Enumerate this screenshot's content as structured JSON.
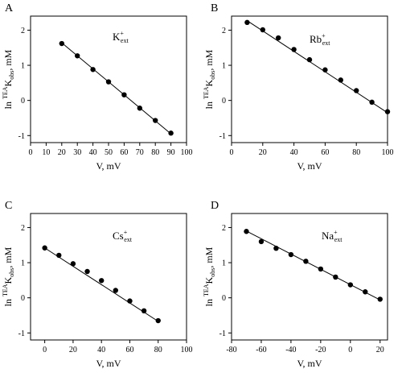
{
  "chart_data": [
    {
      "type": "scatter",
      "panel": "A",
      "ion": {
        "symbol": "K",
        "charge": "+",
        "sub": "ext"
      },
      "ylabel": {
        "prefix": "ln ",
        "sup": "TEA",
        "main": "K",
        "sub": "obs",
        "unit": ", mM"
      },
      "xlabel": "V, mV",
      "xlim": [
        0,
        100
      ],
      "ylim": [
        -1.2,
        2.4
      ],
      "xticks": [
        0,
        10,
        20,
        30,
        40,
        50,
        60,
        70,
        80,
        90,
        100
      ],
      "yticks": [
        -1,
        0,
        1,
        2
      ],
      "x": [
        20,
        30,
        40,
        50,
        60,
        70,
        80,
        90
      ],
      "y": [
        1.62,
        1.27,
        0.88,
        0.53,
        0.16,
        -0.22,
        -0.57,
        -0.93
      ],
      "fit": [
        [
          20,
          1.64
        ],
        [
          90,
          -0.95
        ]
      ]
    },
    {
      "type": "scatter",
      "panel": "B",
      "ion": {
        "symbol": "Rb",
        "charge": "+",
        "sub": "ext"
      },
      "ylabel": {
        "prefix": "ln ",
        "sup": "TEA",
        "main": "K",
        "sub": "obs",
        "unit": ", mM"
      },
      "xlabel": "V, mV",
      "xlim": [
        0,
        100
      ],
      "ylim": [
        -1.2,
        2.4
      ],
      "xticks": [
        0,
        20,
        40,
        60,
        80,
        100
      ],
      "yticks": [
        -1,
        0,
        1,
        2
      ],
      "x": [
        10,
        20,
        30,
        40,
        50,
        60,
        70,
        80,
        90,
        100
      ],
      "y": [
        2.22,
        2.01,
        1.78,
        1.45,
        1.16,
        0.87,
        0.58,
        0.28,
        -0.05,
        -0.32
      ],
      "fit": [
        [
          10,
          2.27
        ],
        [
          100,
          -0.35
        ]
      ]
    },
    {
      "type": "scatter",
      "panel": "C",
      "ion": {
        "symbol": "Cs",
        "charge": "+",
        "sub": "ext"
      },
      "ylabel": {
        "prefix": "ln ",
        "sup": "TEA",
        "main": "K",
        "sub": "obs",
        "unit": ", mM"
      },
      "xlabel": "V, mV",
      "xlim": [
        -10,
        100
      ],
      "ylim": [
        -1.2,
        2.4
      ],
      "xticks": [
        0,
        20,
        40,
        60,
        80,
        100
      ],
      "yticks": [
        -1,
        0,
        1,
        2
      ],
      "x": [
        0,
        10,
        20,
        30,
        40,
        50,
        60,
        70,
        80
      ],
      "y": [
        1.42,
        1.21,
        0.97,
        0.75,
        0.49,
        0.21,
        -0.09,
        -0.37,
        -0.65
      ],
      "fit": [
        [
          0,
          1.42
        ],
        [
          80,
          -0.67
        ]
      ]
    },
    {
      "type": "scatter",
      "panel": "D",
      "ion": {
        "symbol": "Na",
        "charge": "+",
        "sub": "ext"
      },
      "ylabel": {
        "prefix": "ln ",
        "sup": "TEA",
        "main": "K",
        "sub": "obs",
        "unit": ", mM"
      },
      "xlabel": "V, mV",
      "xlim": [
        -80,
        25
      ],
      "ylim": [
        -1.2,
        2.4
      ],
      "xticks": [
        -80,
        -60,
        -40,
        -20,
        0,
        20
      ],
      "yticks": [
        -1,
        0,
        1,
        2
      ],
      "x": [
        -70,
        -60,
        -50,
        -40,
        -30,
        -20,
        -10,
        0,
        10,
        20
      ],
      "y": [
        1.89,
        1.6,
        1.41,
        1.23,
        1.04,
        0.82,
        0.59,
        0.37,
        0.17,
        -0.04
      ],
      "fit": [
        [
          -70,
          1.9
        ],
        [
          20,
          -0.06
        ]
      ]
    }
  ]
}
